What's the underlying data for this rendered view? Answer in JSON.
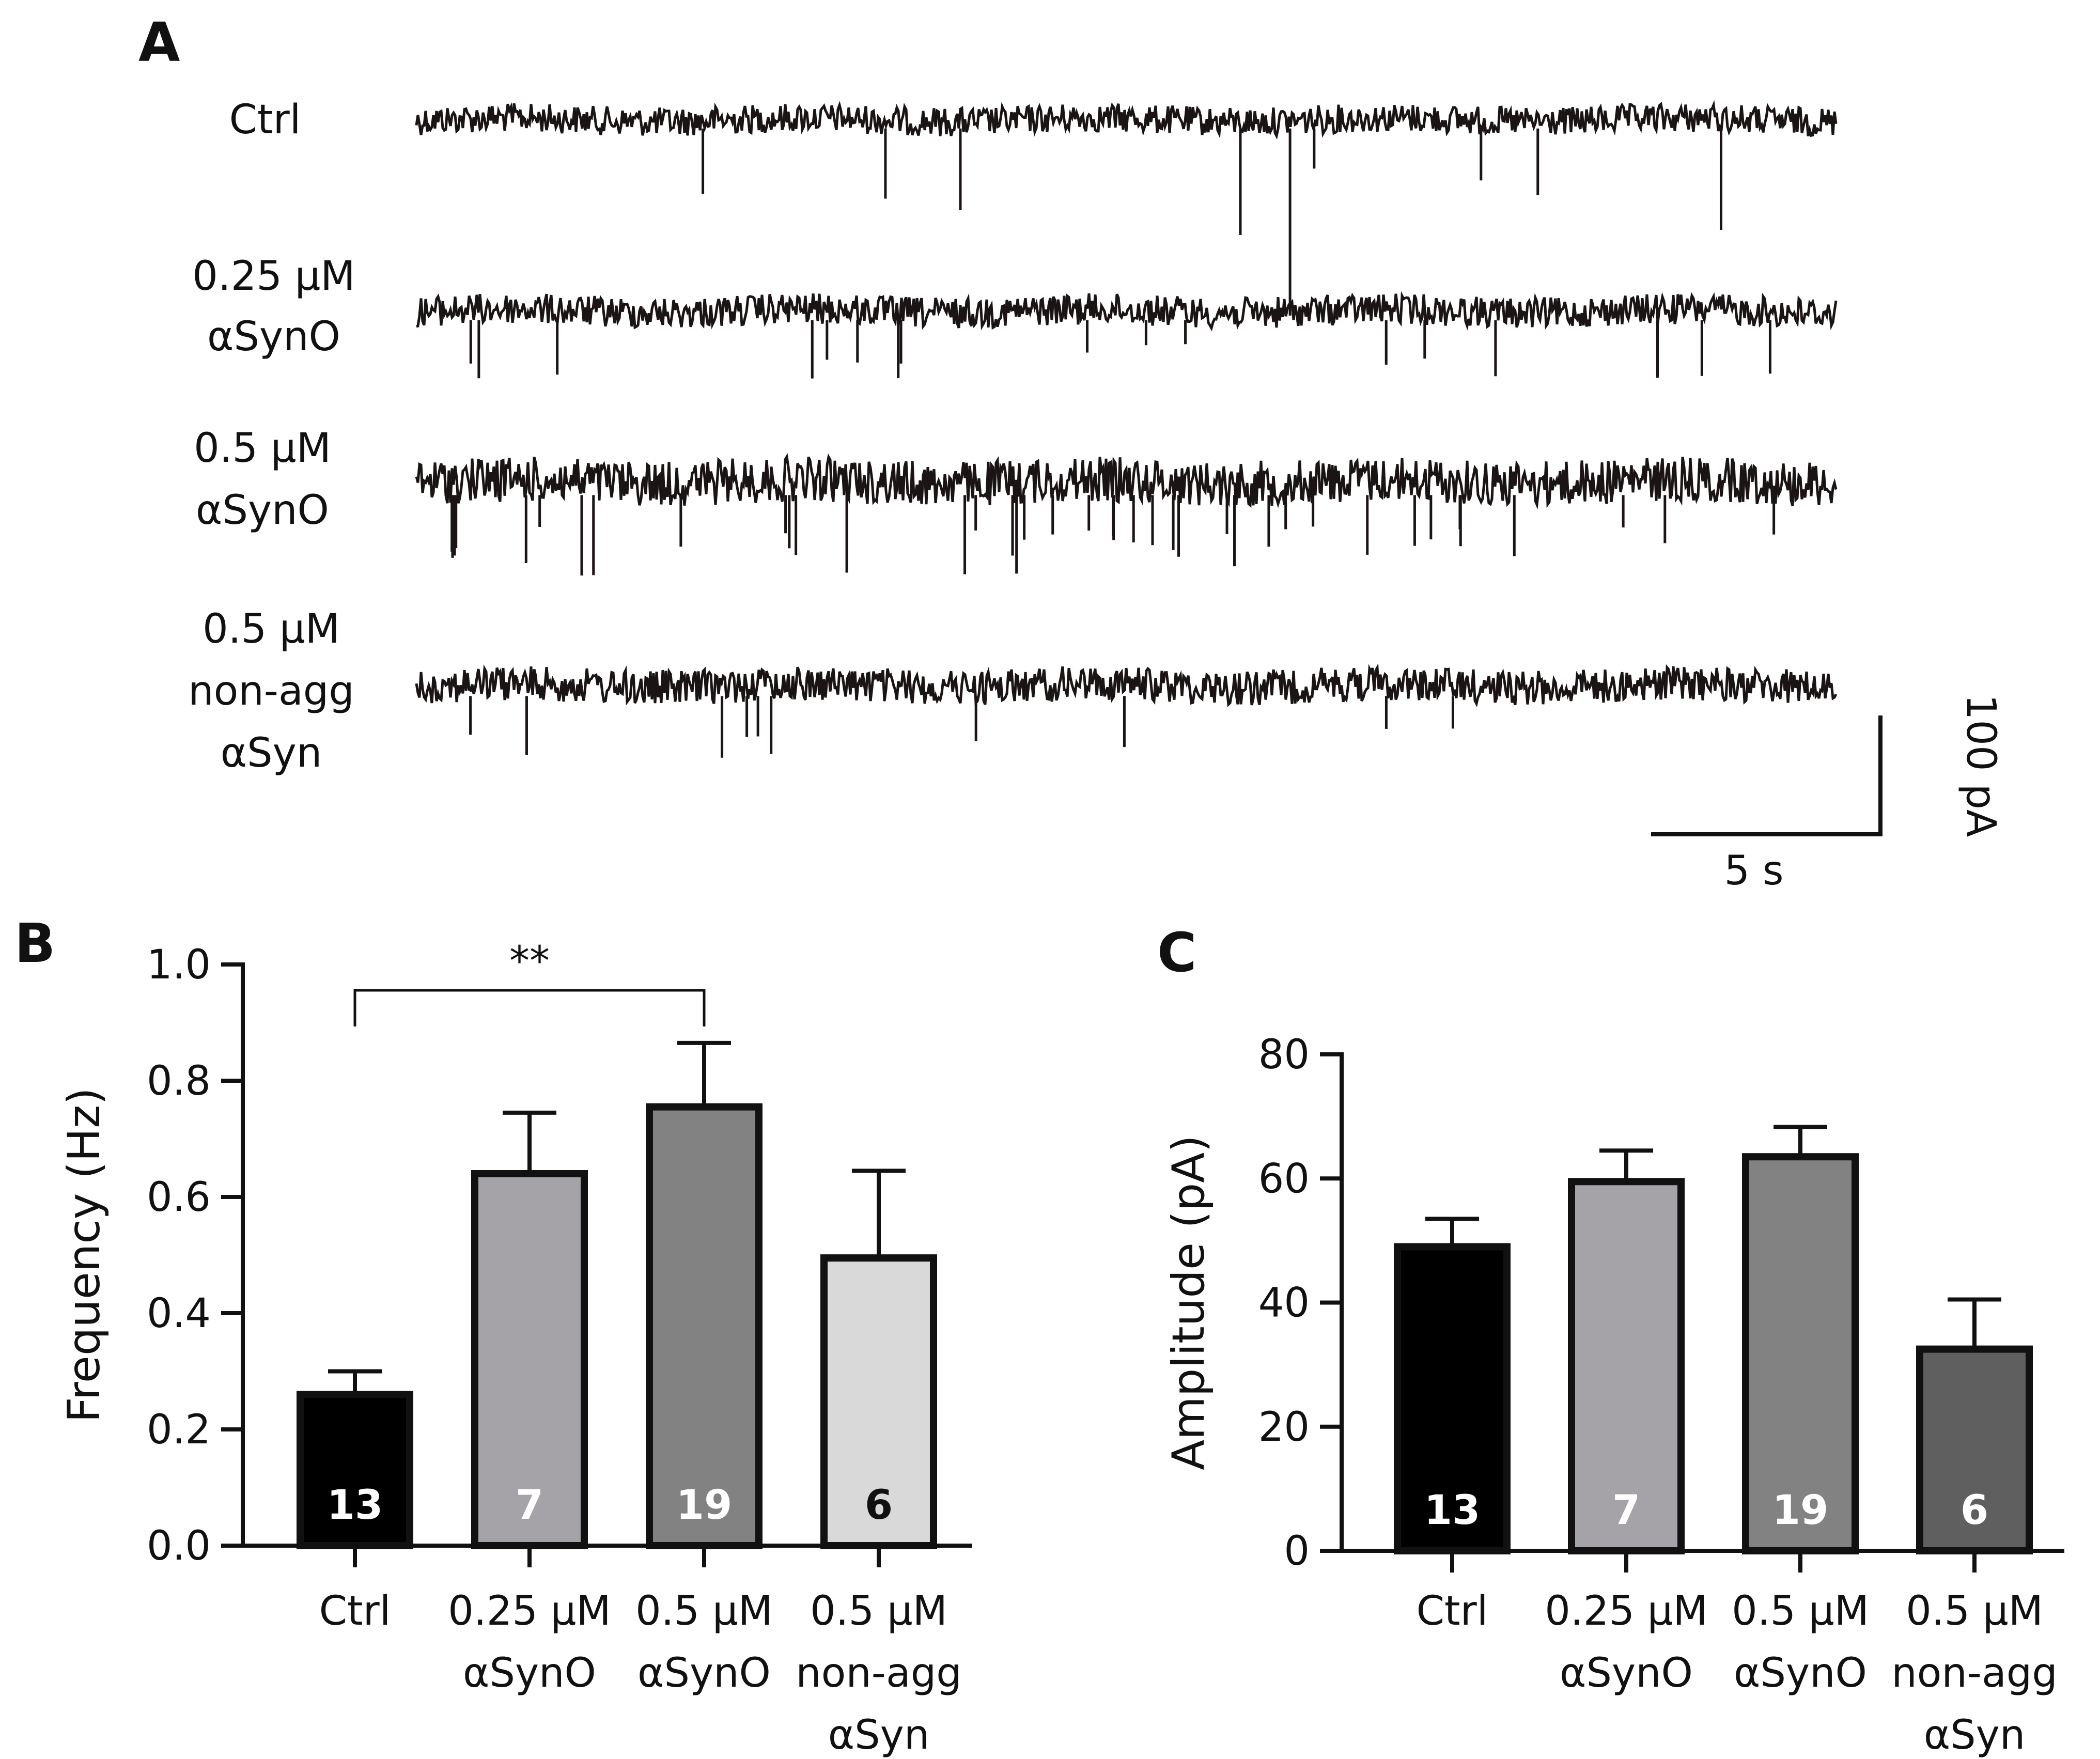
{
  "panels": {
    "a": "A",
    "b": "B",
    "c": "C"
  },
  "traces": [
    {
      "label_lines": [
        "Ctrl"
      ],
      "event_count": 9
    },
    {
      "label_lines": [
        "0.25 µM",
        "αSynO"
      ],
      "event_count": 17
    },
    {
      "label_lines": [
        "0.5 µM",
        "αSynO"
      ],
      "event_count": 40
    },
    {
      "label_lines": [
        "0.5 µM",
        "non-agg",
        "αSyn"
      ],
      "event_count": 10
    }
  ],
  "scalebar": {
    "y_label": "100 pA",
    "x_label": "5 s"
  },
  "chart_data": [
    {
      "type": "bar",
      "panel": "B",
      "categories": [
        [
          "Ctrl"
        ],
        [
          "0.25 µM",
          "αSynO"
        ],
        [
          "0.5 µM",
          "αSynO"
        ],
        [
          "0.5 µM",
          "non-agg",
          "αSyn"
        ]
      ],
      "values": [
        0.26,
        0.64,
        0.755,
        0.495
      ],
      "errors": [
        0.04,
        0.105,
        0.11,
        0.15
      ],
      "n_labels": [
        "13",
        "7",
        "19",
        "6"
      ],
      "colors": [
        "#000000",
        "#a5a3a8",
        "#828282",
        "#d9d9d9"
      ],
      "n_label_colors": [
        "#ffffff",
        "#ffffff",
        "#ffffff",
        "#111111"
      ],
      "ylabel": "Frequency (Hz)",
      "ylim": [
        0,
        1.0
      ],
      "yticks": [
        "0.0",
        "0.2",
        "0.4",
        "0.6",
        "0.8",
        "1.0"
      ],
      "significance": {
        "from": 0,
        "to": 2,
        "label": "**"
      }
    },
    {
      "type": "bar",
      "panel": "C",
      "categories": [
        [
          "Ctrl"
        ],
        [
          "0.25 µM",
          "αSynO"
        ],
        [
          "0.5 µM",
          "αSynO"
        ],
        [
          "0.5 µM",
          "non-agg",
          "αSyn"
        ]
      ],
      "values": [
        49,
        59.5,
        63.5,
        32.5
      ],
      "errors": [
        4.5,
        5,
        4.8,
        8
      ],
      "n_labels": [
        "13",
        "7",
        "19",
        "6"
      ],
      "colors": [
        "#000000",
        "#a5a3a8",
        "#828282",
        "#5f5f5f"
      ],
      "n_label_colors": [
        "#ffffff",
        "#ffffff",
        "#ffffff",
        "#ffffff"
      ],
      "ylabel": "Amplitude (pA)",
      "ylim": [
        0,
        80
      ],
      "yticks": [
        "0",
        "20",
        "40",
        "60",
        "80"
      ]
    }
  ]
}
